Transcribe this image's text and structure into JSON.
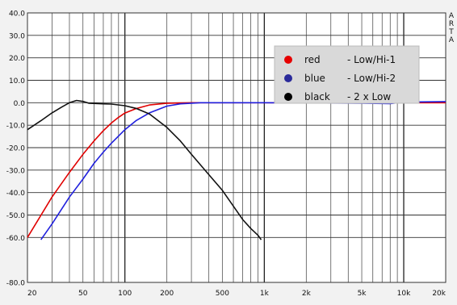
{
  "side_label_letters": [
    "A",
    "R",
    "T",
    "A"
  ],
  "chart_data": {
    "type": "line",
    "x_scale": "log",
    "xlim": [
      20,
      20000
    ],
    "ylim": [
      -80,
      40
    ],
    "y_ticks": [
      40,
      30,
      20,
      10,
      0,
      -10,
      -20,
      -30,
      -40,
      -50,
      -60,
      -80
    ],
    "y_tick_labels": [
      "40.0",
      "30.0",
      "20.0",
      "10.0",
      "0.0",
      "-10.0",
      "-20.0",
      "-30.0",
      "-40.0",
      "-50.0",
      "-60.0",
      "-80.0"
    ],
    "x_tick_values": [
      20,
      50,
      100,
      200,
      500,
      1000,
      2000,
      5000,
      10000,
      20000
    ],
    "x_tick_labels": [
      "20",
      "50",
      "100",
      "200",
      "500",
      "1k",
      "2k",
      "5k",
      "10k",
      "20k"
    ],
    "grid": true,
    "legend_position": "top-right",
    "legend": [
      {
        "color": "#e60000",
        "name": "red",
        "desc": "- Low/Hi-1"
      },
      {
        "color": "#2a2a9a",
        "name": "blue",
        "desc": "- Low/Hi-2"
      },
      {
        "color": "#000000",
        "name": "black",
        "desc": "- 2 x Low"
      }
    ],
    "series": [
      {
        "color": "#e00000",
        "points": [
          [
            20,
            -60
          ],
          [
            30,
            -42
          ],
          [
            40,
            -31
          ],
          [
            50,
            -23
          ],
          [
            60,
            -17
          ],
          [
            70,
            -12.5
          ],
          [
            80,
            -9
          ],
          [
            90,
            -6.5
          ],
          [
            100,
            -4.6
          ],
          [
            120,
            -2.6
          ],
          [
            150,
            -1.0
          ],
          [
            200,
            -0.2
          ],
          [
            300,
            0
          ],
          [
            1000,
            0
          ],
          [
            5000,
            0
          ],
          [
            10000,
            0
          ],
          [
            20000,
            0
          ]
        ]
      },
      {
        "color": "#2020dd",
        "points": [
          [
            25,
            -61
          ],
          [
            30,
            -54
          ],
          [
            40,
            -42
          ],
          [
            50,
            -34
          ],
          [
            60,
            -27
          ],
          [
            70,
            -22
          ],
          [
            80,
            -18
          ],
          [
            100,
            -12
          ],
          [
            120,
            -8
          ],
          [
            150,
            -4.5
          ],
          [
            200,
            -1.5
          ],
          [
            250,
            -0.5
          ],
          [
            350,
            0
          ],
          [
            1000,
            0
          ],
          [
            5000,
            -0.2
          ],
          [
            8000,
            -0.4
          ],
          [
            10000,
            0.3
          ],
          [
            20000,
            0.5
          ]
        ]
      },
      {
        "color": "#111111",
        "points": [
          [
            20,
            -12
          ],
          [
            25,
            -8
          ],
          [
            30,
            -4.5
          ],
          [
            35,
            -2
          ],
          [
            40,
            0
          ],
          [
            45,
            1
          ],
          [
            50,
            0.6
          ],
          [
            55,
            -0.2
          ],
          [
            70,
            -0.5
          ],
          [
            80,
            -0.6
          ],
          [
            100,
            -1.3
          ],
          [
            120,
            -2.5
          ],
          [
            150,
            -5
          ],
          [
            200,
            -11
          ],
          [
            250,
            -17
          ],
          [
            300,
            -23
          ],
          [
            400,
            -32
          ],
          [
            500,
            -39
          ],
          [
            600,
            -46
          ],
          [
            700,
            -52
          ],
          [
            800,
            -56
          ],
          [
            900,
            -59
          ],
          [
            950,
            -61
          ]
        ]
      }
    ]
  }
}
